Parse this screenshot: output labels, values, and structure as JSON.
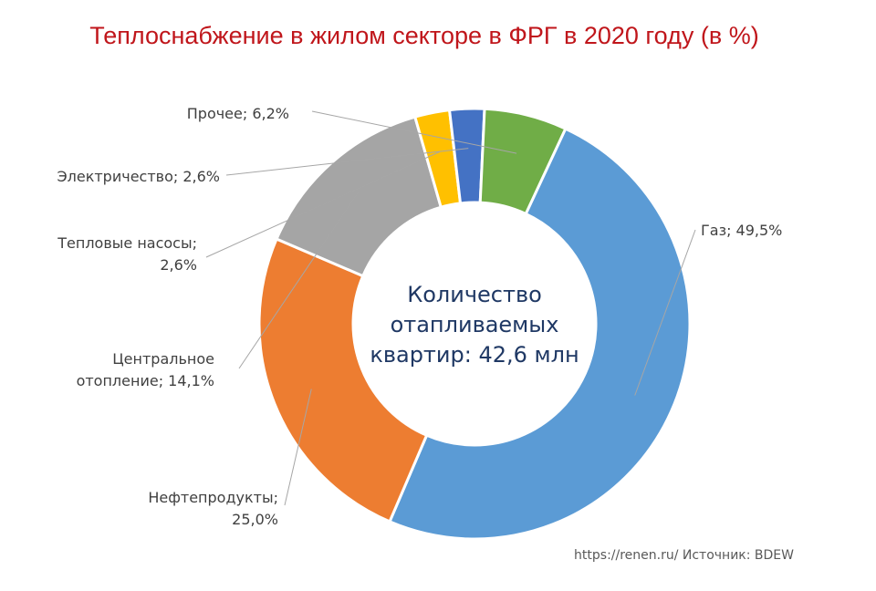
{
  "page": {
    "title": "Теплоснабжение в жилом секторе в ФРГ в 2020 году (в %)",
    "source": "https://renen.ru/ Источник: BDEW"
  },
  "chart_data": {
    "type": "pie",
    "variant": "donut",
    "title": "Теплоснабжение в жилом секторе в ФРГ в 2020 году (в %)",
    "center_text": [
      "Количество",
      "отапливаемых",
      "квартир: 42,6 млн"
    ],
    "series": [
      {
        "name": "Газ",
        "value": 49.5,
        "label_lines": [
          "Газ; 49,5%"
        ],
        "color": "#5b9bd5"
      },
      {
        "name": "Нефтепродукты",
        "value": 25.0,
        "label_lines": [
          "Нефтепродукты;",
          "25,0%"
        ],
        "color": "#ed7d31"
      },
      {
        "name": "Центральное отопление",
        "value": 14.1,
        "label_lines": [
          "Центральное",
          "отопление; 14,1%"
        ],
        "color": "#a5a5a5"
      },
      {
        "name": "Тепловые насосы",
        "value": 2.6,
        "label_lines": [
          "Тепловые насосы;",
          "2,6%"
        ],
        "color": "#ffc000"
      },
      {
        "name": "Электричество",
        "value": 2.6,
        "label_lines": [
          "Электричество; 2,6%"
        ],
        "color": "#4472c4"
      },
      {
        "name": "Прочее",
        "value": 6.2,
        "label_lines": [
          "Прочее; 6,2%"
        ],
        "color": "#70ad47"
      }
    ],
    "legend": "none"
  }
}
